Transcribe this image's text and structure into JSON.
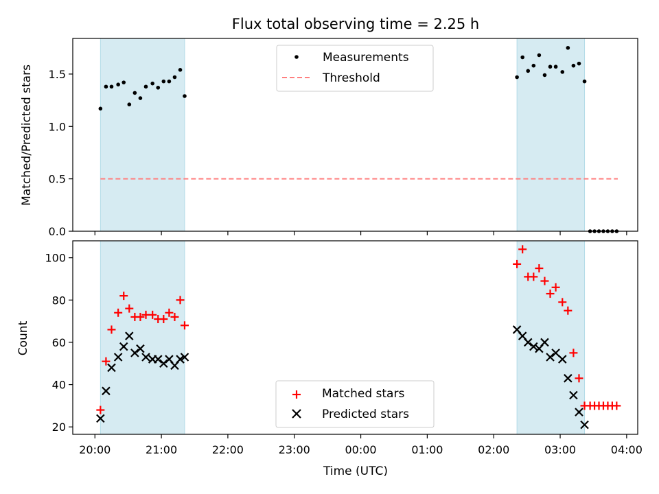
{
  "figure_title": "Flux total observing time = 2.25 h",
  "colors": {
    "shade": "#add8e6",
    "matched": "#ff0000",
    "predicted": "#000000",
    "measurements": "#000000",
    "threshold": "#ff7f7f"
  },
  "chart_data": [
    {
      "type": "scatter",
      "ylabel": "Matched/Predicted stars",
      "ylim": [
        0,
        1.84
      ],
      "yticks": [
        "0.0",
        "0.5",
        "1.0",
        "1.5"
      ],
      "xlim": [
        "19:40",
        "04:10"
      ],
      "grid": false,
      "legend_position": "top-center",
      "legend": [
        {
          "label": "Measurements",
          "marker": "dot"
        },
        {
          "label": "Threshold",
          "marker": "dashed-line"
        }
      ],
      "shaded_intervals": [
        [
          "20:05",
          "21:21"
        ],
        [
          "02:21",
          "03:22"
        ]
      ],
      "threshold": {
        "y": 0.5,
        "x_start": "20:05",
        "x_end": "03:52"
      },
      "series": [
        {
          "name": "Measurements",
          "x": [
            "20:05",
            "20:10",
            "20:15",
            "20:21",
            "20:26",
            "20:31",
            "20:36",
            "20:41",
            "20:46",
            "20:52",
            "20:57",
            "21:02",
            "21:07",
            "21:12",
            "21:17",
            "21:21",
            "02:21",
            "02:26",
            "02:31",
            "02:36",
            "02:41",
            "02:46",
            "02:51",
            "02:56",
            "03:02",
            "03:07",
            "03:12",
            "03:17",
            "03:22",
            "03:27",
            "03:31",
            "03:35",
            "03:39",
            "03:43",
            "03:47",
            "03:51"
          ],
          "y": [
            1.17,
            1.38,
            1.38,
            1.4,
            1.42,
            1.21,
            1.32,
            1.27,
            1.38,
            1.41,
            1.37,
            1.43,
            1.43,
            1.47,
            1.54,
            1.29,
            1.47,
            1.66,
            1.53,
            1.58,
            1.68,
            1.49,
            1.57,
            1.57,
            1.52,
            1.75,
            1.58,
            1.6,
            1.43,
            0.0,
            0.0,
            0.0,
            0.0,
            0.0,
            0.0,
            0.0
          ]
        }
      ]
    },
    {
      "type": "scatter",
      "xlabel": "Time (UTC)",
      "ylabel": "Count",
      "ylim": [
        16.5,
        108
      ],
      "yticks": [
        "20",
        "40",
        "60",
        "80",
        "100"
      ],
      "xticks": [
        "20:00",
        "21:00",
        "22:00",
        "23:00",
        "00:00",
        "01:00",
        "02:00",
        "03:00",
        "04:00"
      ],
      "xlim": [
        "19:40",
        "04:10"
      ],
      "grid": false,
      "legend_position": "bottom-center",
      "legend": [
        {
          "label": "Matched stars",
          "marker": "plus"
        },
        {
          "label": "Predicted stars",
          "marker": "x"
        }
      ],
      "shaded_intervals": [
        [
          "20:05",
          "21:21"
        ],
        [
          "02:21",
          "03:22"
        ]
      ],
      "series": [
        {
          "name": "Matched stars",
          "x": [
            "20:05",
            "20:10",
            "20:15",
            "20:21",
            "20:26",
            "20:31",
            "20:36",
            "20:41",
            "20:46",
            "20:52",
            "20:57",
            "21:02",
            "21:07",
            "21:12",
            "21:17",
            "21:21",
            "02:21",
            "02:26",
            "02:31",
            "02:36",
            "02:41",
            "02:46",
            "02:51",
            "02:56",
            "03:02",
            "03:07",
            "03:12",
            "03:17",
            "03:22",
            "03:27",
            "03:31",
            "03:35",
            "03:39",
            "03:43",
            "03:47",
            "03:51"
          ],
          "y": [
            28,
            51,
            66,
            74,
            82,
            76,
            72,
            72,
            73,
            73,
            71,
            71,
            74,
            72,
            80,
            68,
            97,
            104,
            91,
            91,
            95,
            89,
            83,
            86,
            79,
            75,
            55,
            43,
            30,
            30,
            30,
            30,
            30,
            30,
            30,
            30
          ]
        },
        {
          "name": "Predicted stars",
          "x": [
            "20:05",
            "20:10",
            "20:15",
            "20:21",
            "20:26",
            "20:31",
            "20:36",
            "20:41",
            "20:46",
            "20:52",
            "20:57",
            "21:02",
            "21:07",
            "21:12",
            "21:17",
            "21:21",
            "02:21",
            "02:26",
            "02:31",
            "02:36",
            "02:41",
            "02:46",
            "02:51",
            "02:56",
            "03:02",
            "03:07",
            "03:12",
            "03:17",
            "03:22"
          ],
          "y": [
            24,
            37,
            48,
            53,
            58,
            63,
            55,
            57,
            53,
            52,
            52,
            50,
            52,
            49,
            52,
            53,
            66,
            63,
            60,
            58,
            57,
            60,
            53,
            55,
            52,
            43,
            35,
            27,
            21
          ]
        }
      ]
    }
  ]
}
